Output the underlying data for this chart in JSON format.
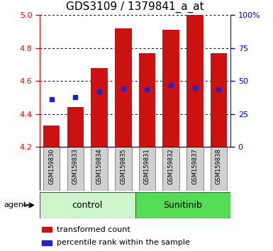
{
  "title": "GDS3109 / 1379841_a_at",
  "samples": [
    "GSM159830",
    "GSM159833",
    "GSM159834",
    "GSM159835",
    "GSM159831",
    "GSM159832",
    "GSM159837",
    "GSM159838"
  ],
  "bar_bottoms": [
    4.2,
    4.2,
    4.2,
    4.2,
    4.2,
    4.2,
    4.2,
    4.2
  ],
  "bar_tops": [
    4.33,
    4.44,
    4.68,
    4.92,
    4.77,
    4.91,
    5.0,
    4.77
  ],
  "percentile_values": [
    4.49,
    4.5,
    4.535,
    4.555,
    4.548,
    4.573,
    4.557,
    4.548
  ],
  "groups": [
    {
      "label": "control",
      "indices": [
        0,
        1,
        2,
        3
      ],
      "color": "#ccf5cc"
    },
    {
      "label": "Sunitinib",
      "indices": [
        4,
        5,
        6,
        7
      ],
      "color": "#55dd55"
    }
  ],
  "bar_color": "#cc1111",
  "percentile_color": "#2222cc",
  "ylim": [
    4.2,
    5.0
  ],
  "y_ticks": [
    4.2,
    4.4,
    4.6,
    4.8,
    5.0
  ],
  "right_y_ticks": [
    0,
    25,
    50,
    75,
    100
  ],
  "right_y_tick_labels": [
    "0",
    "25",
    "50",
    "75",
    "100%"
  ],
  "background_color": "#ffffff",
  "label_area_color": "#d0d0d0",
  "bar_width": 0.7,
  "title_fontsize": 11,
  "tick_fontsize": 8,
  "legend_fontsize": 8,
  "group_fontsize": 9,
  "sample_fontsize": 6
}
